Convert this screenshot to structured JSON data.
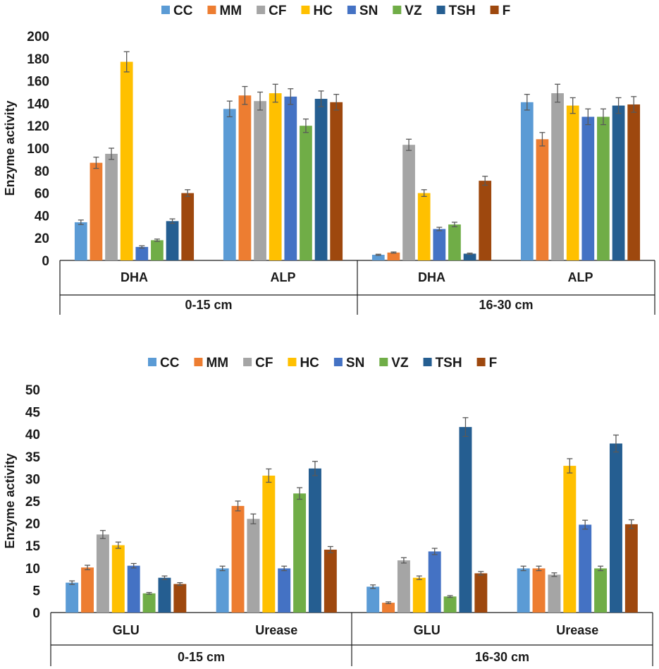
{
  "chart_data": [
    {
      "type": "bar",
      "ylabel": "Enzyme activity",
      "ylim": [
        0,
        200
      ],
      "yticks": [
        0,
        20,
        40,
        60,
        80,
        100,
        120,
        140,
        160,
        180,
        200
      ],
      "legend_position": "top-center",
      "groups": [
        {
          "label": "0-15 cm",
          "categories": [
            "DHA",
            "ALP"
          ]
        },
        {
          "label": "16-30 cm",
          "categories": [
            "DHA",
            "ALP"
          ]
        }
      ],
      "series": [
        {
          "name": "CC",
          "color": "#5B9BD5",
          "values": [
            34,
            135,
            5,
            141
          ],
          "errors": [
            2,
            7,
            0.5,
            7
          ]
        },
        {
          "name": "MM",
          "color": "#ED7D31",
          "values": [
            87,
            147,
            7,
            108
          ],
          "errors": [
            5,
            8,
            0.5,
            6
          ]
        },
        {
          "name": "CF",
          "color": "#A5A5A5",
          "values": [
            95,
            142,
            103,
            149
          ],
          "errors": [
            5,
            8,
            5,
            8
          ]
        },
        {
          "name": "HC",
          "color": "#FFC000",
          "values": [
            177,
            149,
            60,
            138
          ],
          "errors": [
            9,
            8,
            3,
            7
          ]
        },
        {
          "name": "SN",
          "color": "#4472C4",
          "values": [
            12,
            146,
            28,
            128
          ],
          "errors": [
            1,
            7,
            1.5,
            7
          ]
        },
        {
          "name": "VZ",
          "color": "#70AD47",
          "values": [
            18,
            120,
            32,
            128
          ],
          "errors": [
            1,
            6,
            2,
            7
          ]
        },
        {
          "name": "TSH",
          "color": "#255E91",
          "values": [
            35,
            144,
            6,
            138
          ],
          "errors": [
            2,
            7,
            0.5,
            7
          ]
        },
        {
          "name": "F",
          "color": "#9E480E",
          "values": [
            60,
            141,
            71,
            139
          ],
          "errors": [
            3,
            7,
            4,
            7
          ]
        }
      ]
    },
    {
      "type": "bar",
      "ylabel": "Enzyme activity",
      "ylim": [
        0,
        50
      ],
      "yticks": [
        0,
        5,
        10,
        15,
        20,
        25,
        30,
        35,
        40,
        45,
        50
      ],
      "legend_position": "top-center",
      "groups": [
        {
          "label": "0-15 cm",
          "categories": [
            "GLU",
            "Urease"
          ]
        },
        {
          "label": "16-30 cm",
          "categories": [
            "GLU",
            "Urease"
          ]
        }
      ],
      "series": [
        {
          "name": "CC",
          "color": "#5B9BD5",
          "values": [
            6.7,
            9.9,
            5.8,
            9.9
          ],
          "errors": [
            0.4,
            0.5,
            0.4,
            0.5
          ]
        },
        {
          "name": "MM",
          "color": "#ED7D31",
          "values": [
            10.1,
            23.9,
            2.2,
            9.9
          ],
          "errors": [
            0.5,
            1.1,
            0.2,
            0.5
          ]
        },
        {
          "name": "CF",
          "color": "#A5A5A5",
          "values": [
            17.5,
            21.0,
            11.7,
            8.5
          ],
          "errors": [
            0.9,
            1.1,
            0.6,
            0.4
          ]
        },
        {
          "name": "HC",
          "color": "#FFC000",
          "values": [
            15.1,
            30.7,
            7.8,
            32.9
          ],
          "errors": [
            0.7,
            1.5,
            0.4,
            1.6
          ]
        },
        {
          "name": "SN",
          "color": "#4472C4",
          "values": [
            10.5,
            9.9,
            13.7,
            19.7
          ],
          "errors": [
            0.5,
            0.5,
            0.7,
            1.0
          ]
        },
        {
          "name": "VZ",
          "color": "#70AD47",
          "values": [
            4.3,
            26.7,
            3.6,
            9.9
          ],
          "errors": [
            0.2,
            1.3,
            0.2,
            0.5
          ]
        },
        {
          "name": "TSH",
          "color": "#255E91",
          "values": [
            7.8,
            32.3,
            41.6,
            37.9
          ],
          "errors": [
            0.4,
            1.6,
            2.1,
            1.9
          ]
        },
        {
          "name": "F",
          "color": "#9E480E",
          "values": [
            6.4,
            14.1,
            8.8,
            19.8
          ],
          "errors": [
            0.3,
            0.7,
            0.4,
            1.0
          ]
        }
      ]
    }
  ]
}
